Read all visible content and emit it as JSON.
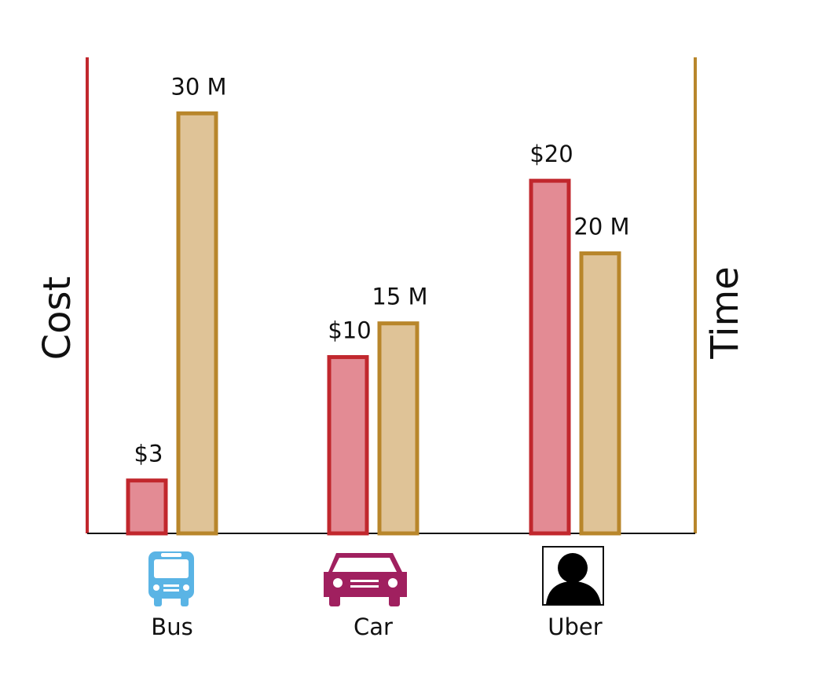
{
  "chart_data": {
    "type": "bar",
    "categories": [
      "Bus",
      "Car",
      "Uber"
    ],
    "ylabel": "Cost",
    "y2label": "Time",
    "ylim": [
      0,
      27
    ],
    "y2lim": [
      0,
      34
    ],
    "series": [
      {
        "color": "#c1272d",
        "values": [
          3,
          10,
          20
        ],
        "value_labels": [
          "$3",
          "$10",
          "$20"
        ]
      },
      {
        "color": "#b8862b",
        "axis": "y2",
        "values": [
          30,
          15,
          20
        ],
        "value_labels": [
          "30 M",
          "15 M",
          "20 M"
        ]
      }
    ]
  }
}
